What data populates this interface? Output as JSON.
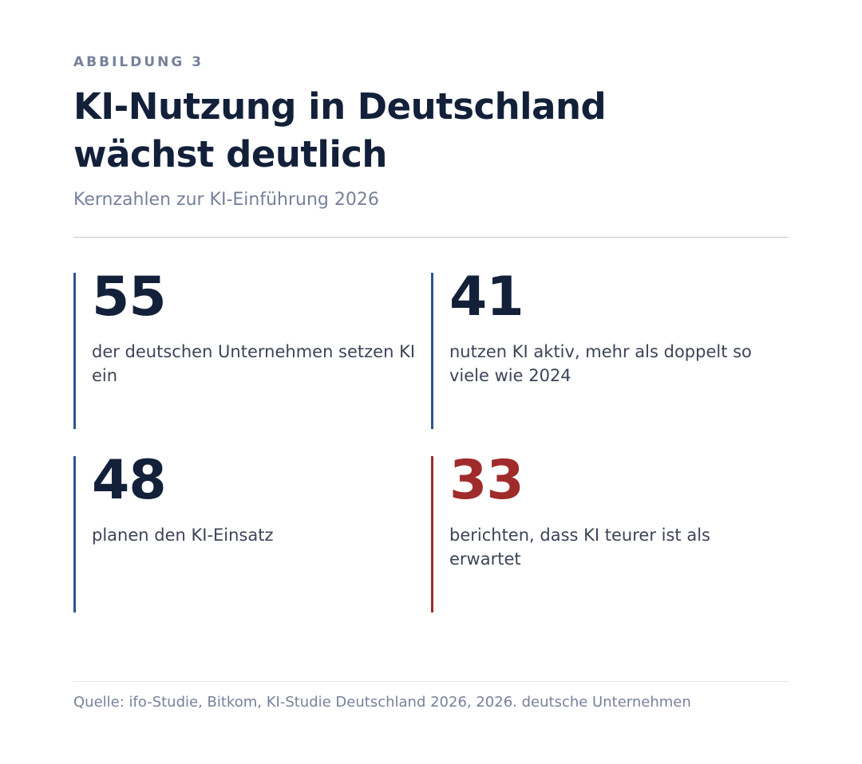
{
  "header": {
    "eyebrow": "ABBILDUNG 3",
    "title_line1": "KI-Nutzung in Deutschland",
    "title_line2": "wächst deutlich",
    "subtitle": "Kernzahlen zur KI-Einführung 2026"
  },
  "stats": [
    {
      "value": "55",
      "label": "der deutschen Unternehmen setzen KI ein"
    },
    {
      "value": "41",
      "label": "nutzen KI aktiv, mehr als doppelt so viele wie 2024"
    },
    {
      "value": "48",
      "label": "planen den KI-Einsatz"
    },
    {
      "value": "33",
      "label": "berichten, dass KI teurer ist als erwartet"
    }
  ],
  "footer": {
    "source": "Quelle: ifo-Studie, Bitkom, KI-Studie Deutschland 2026, 2026. deutsche Unternehmen"
  },
  "colors": {
    "accent": "#2e5590",
    "alert": "#a02b2b",
    "text_dark": "#13203a",
    "text_muted": "#76819a"
  }
}
